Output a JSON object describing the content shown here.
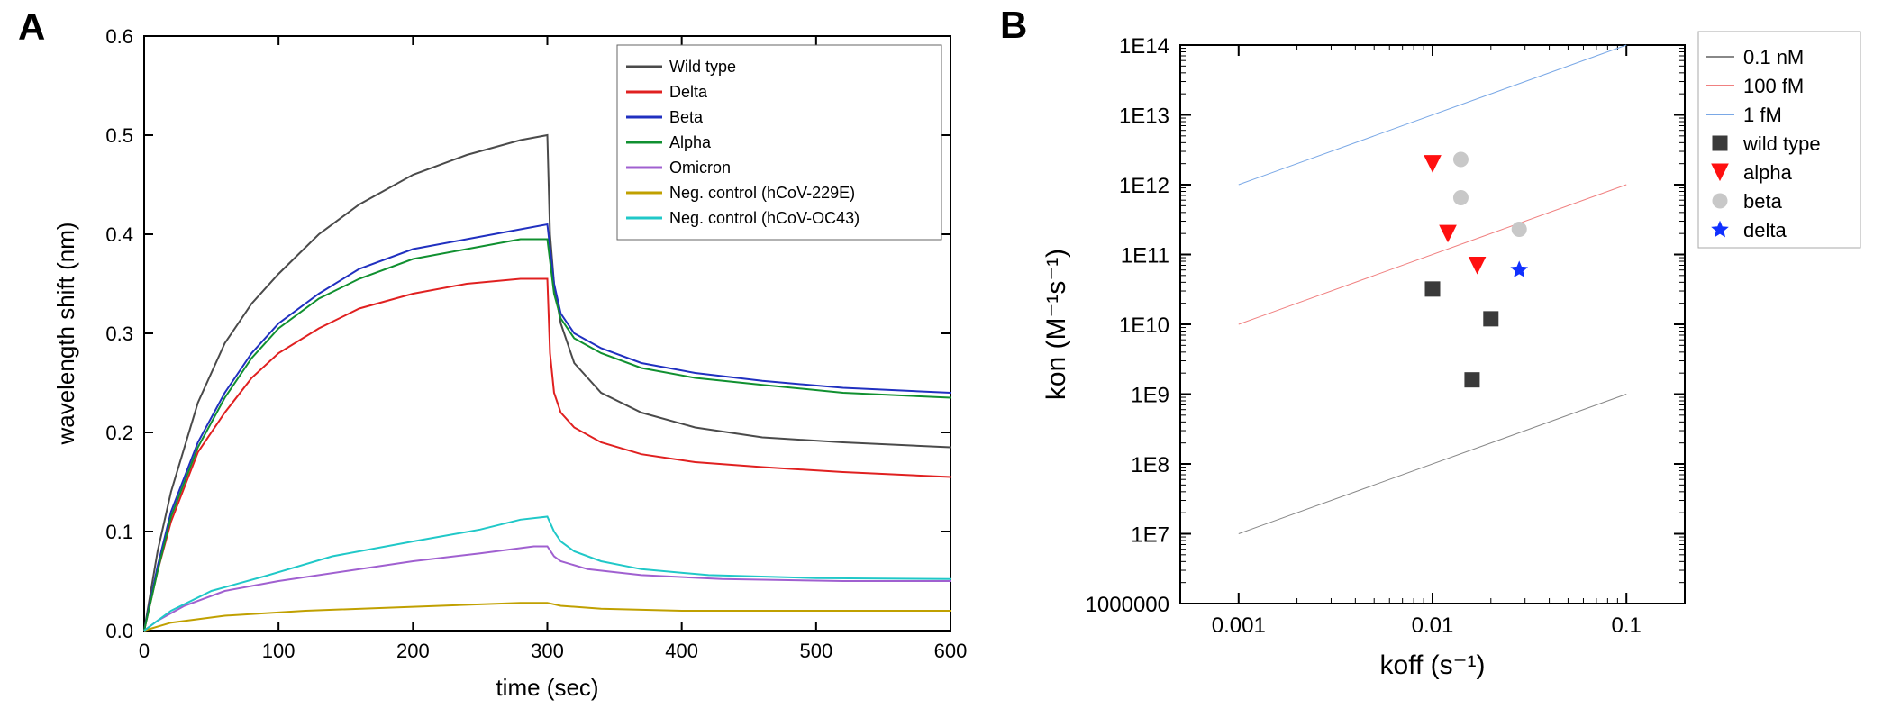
{
  "panelA": {
    "type": "line",
    "label": "A",
    "xlabel": "time (sec)",
    "ylabel": "wavelength shift (nm)",
    "label_fontsize": 26,
    "tick_fontsize": 22,
    "xlim": [
      0,
      600
    ],
    "ylim": [
      0.0,
      0.6
    ],
    "xtick_step": 100,
    "ytick_step": 0.1,
    "background_color": "#ffffff",
    "axis_color": "#000000",
    "line_width": 2,
    "legend": {
      "border_color": "#666666",
      "bg_color": "#ffffff",
      "fontsize": 18
    },
    "series": [
      {
        "name": "Wild type",
        "color": "#4a4a4a",
        "points": [
          [
            0,
            0
          ],
          [
            10,
            0.08
          ],
          [
            20,
            0.14
          ],
          [
            40,
            0.23
          ],
          [
            60,
            0.29
          ],
          [
            80,
            0.33
          ],
          [
            100,
            0.36
          ],
          [
            130,
            0.4
          ],
          [
            160,
            0.43
          ],
          [
            200,
            0.46
          ],
          [
            240,
            0.48
          ],
          [
            280,
            0.495
          ],
          [
            300,
            0.5
          ],
          [
            302,
            0.4
          ],
          [
            305,
            0.35
          ],
          [
            310,
            0.31
          ],
          [
            320,
            0.27
          ],
          [
            340,
            0.24
          ],
          [
            370,
            0.22
          ],
          [
            410,
            0.205
          ],
          [
            460,
            0.195
          ],
          [
            520,
            0.19
          ],
          [
            600,
            0.185
          ]
        ]
      },
      {
        "name": "Delta",
        "color": "#e02020",
        "points": [
          [
            0,
            0
          ],
          [
            10,
            0.06
          ],
          [
            20,
            0.11
          ],
          [
            40,
            0.18
          ],
          [
            60,
            0.22
          ],
          [
            80,
            0.255
          ],
          [
            100,
            0.28
          ],
          [
            130,
            0.305
          ],
          [
            160,
            0.325
          ],
          [
            200,
            0.34
          ],
          [
            240,
            0.35
          ],
          [
            280,
            0.355
          ],
          [
            300,
            0.355
          ],
          [
            302,
            0.28
          ],
          [
            305,
            0.24
          ],
          [
            310,
            0.22
          ],
          [
            320,
            0.205
          ],
          [
            340,
            0.19
          ],
          [
            370,
            0.178
          ],
          [
            410,
            0.17
          ],
          [
            460,
            0.165
          ],
          [
            520,
            0.16
          ],
          [
            600,
            0.155
          ]
        ]
      },
      {
        "name": "Beta",
        "color": "#2030c0",
        "points": [
          [
            0,
            0
          ],
          [
            10,
            0.065
          ],
          [
            20,
            0.12
          ],
          [
            40,
            0.19
          ],
          [
            60,
            0.24
          ],
          [
            80,
            0.28
          ],
          [
            100,
            0.31
          ],
          [
            130,
            0.34
          ],
          [
            160,
            0.365
          ],
          [
            200,
            0.385
          ],
          [
            240,
            0.395
          ],
          [
            280,
            0.405
          ],
          [
            300,
            0.41
          ],
          [
            305,
            0.35
          ],
          [
            310,
            0.32
          ],
          [
            320,
            0.3
          ],
          [
            340,
            0.285
          ],
          [
            370,
            0.27
          ],
          [
            410,
            0.26
          ],
          [
            460,
            0.252
          ],
          [
            520,
            0.245
          ],
          [
            600,
            0.24
          ]
        ]
      },
      {
        "name": "Alpha",
        "color": "#109030",
        "points": [
          [
            0,
            0
          ],
          [
            10,
            0.06
          ],
          [
            20,
            0.115
          ],
          [
            40,
            0.185
          ],
          [
            60,
            0.235
          ],
          [
            80,
            0.275
          ],
          [
            100,
            0.305
          ],
          [
            130,
            0.335
          ],
          [
            160,
            0.355
          ],
          [
            200,
            0.375
          ],
          [
            240,
            0.385
          ],
          [
            280,
            0.395
          ],
          [
            300,
            0.395
          ],
          [
            305,
            0.34
          ],
          [
            310,
            0.315
          ],
          [
            320,
            0.295
          ],
          [
            340,
            0.28
          ],
          [
            370,
            0.265
          ],
          [
            410,
            0.255
          ],
          [
            460,
            0.248
          ],
          [
            520,
            0.24
          ],
          [
            600,
            0.235
          ]
        ]
      },
      {
        "name": "Omicron",
        "color": "#a060d0",
        "points": [
          [
            0,
            0
          ],
          [
            10,
            0.01
          ],
          [
            30,
            0.025
          ],
          [
            60,
            0.04
          ],
          [
            100,
            0.05
          ],
          [
            150,
            0.06
          ],
          [
            200,
            0.07
          ],
          [
            250,
            0.078
          ],
          [
            290,
            0.085
          ],
          [
            300,
            0.085
          ],
          [
            305,
            0.075
          ],
          [
            310,
            0.07
          ],
          [
            330,
            0.062
          ],
          [
            370,
            0.056
          ],
          [
            430,
            0.052
          ],
          [
            520,
            0.05
          ],
          [
            600,
            0.05
          ]
        ]
      },
      {
        "name": "Neg. control (hCoV-229E)",
        "color": "#c0a000",
        "points": [
          [
            0,
            0
          ],
          [
            20,
            0.008
          ],
          [
            60,
            0.015
          ],
          [
            120,
            0.02
          ],
          [
            200,
            0.024
          ],
          [
            280,
            0.028
          ],
          [
            300,
            0.028
          ],
          [
            310,
            0.025
          ],
          [
            340,
            0.022
          ],
          [
            400,
            0.02
          ],
          [
            520,
            0.02
          ],
          [
            600,
            0.02
          ]
        ]
      },
      {
        "name": "Neg. control (hCoV-OC43)",
        "color": "#20c8c8",
        "points": [
          [
            0,
            0
          ],
          [
            20,
            0.02
          ],
          [
            50,
            0.04
          ],
          [
            90,
            0.055
          ],
          [
            140,
            0.075
          ],
          [
            200,
            0.09
          ],
          [
            250,
            0.102
          ],
          [
            280,
            0.112
          ],
          [
            300,
            0.115
          ],
          [
            305,
            0.1
          ],
          [
            310,
            0.09
          ],
          [
            320,
            0.08
          ],
          [
            340,
            0.07
          ],
          [
            370,
            0.062
          ],
          [
            420,
            0.056
          ],
          [
            500,
            0.053
          ],
          [
            600,
            0.052
          ]
        ]
      }
    ]
  },
  "panelB": {
    "type": "scatter",
    "label": "B",
    "xlabel": "koff (s⁻¹)",
    "ylabel": "kon (M⁻¹s⁻¹)",
    "label_fontsize": 30,
    "tick_fontsize": 24,
    "xscale": "log",
    "yscale": "log",
    "xlim": [
      0.0005,
      0.2
    ],
    "ylim": [
      1000000.0,
      100000000000000.0
    ],
    "xticks": [
      0.001,
      0.01,
      0.1
    ],
    "xtick_labels": [
      "0.001",
      "0.01",
      "0.1"
    ],
    "yticks": [
      1000000.0,
      10000000.0,
      100000000.0,
      1000000000.0,
      10000000000.0,
      100000000000.0,
      1000000000000.0,
      10000000000000.0,
      100000000000000.0
    ],
    "ytick_labels": [
      "1000000",
      "1E7",
      "1E8",
      "1E9",
      "1E10",
      "1E11",
      "1E12",
      "1E13",
      "1E14"
    ],
    "background_color": "#ffffff",
    "axis_color": "#000000",
    "legend": {
      "border_color": "#aaaaaa",
      "bg_color": "#ffffff",
      "fontsize": 22
    },
    "ref_lines": [
      {
        "name": "0.1 nM",
        "color": "#888888",
        "width": 1,
        "p1": [
          0.001,
          10000000.0
        ],
        "p2": [
          0.1,
          1000000000.0
        ]
      },
      {
        "name": "100 fM",
        "color": "#f08080",
        "width": 1,
        "p1": [
          0.001,
          10000000000.0
        ],
        "p2": [
          0.1,
          1000000000000.0
        ]
      },
      {
        "name": "1 fM",
        "color": "#7aa8e6",
        "width": 1,
        "p1": [
          0.001,
          1000000000000.0
        ],
        "p2": [
          0.1,
          100000000000000.0
        ]
      }
    ],
    "groups": [
      {
        "name": "wild type",
        "marker": "square",
        "fill": "#3a3a3a",
        "stroke": "#3a3a3a",
        "size": 16,
        "points": [
          [
            0.01,
            32000000000.0
          ],
          [
            0.02,
            12000000000.0
          ],
          [
            0.016,
            1600000000.0
          ]
        ]
      },
      {
        "name": "alpha",
        "marker": "tri-down",
        "fill": "#ff1010",
        "stroke": "#ff1010",
        "size": 18,
        "points": [
          [
            0.01,
            2000000000000.0
          ],
          [
            0.012,
            200000000000.0
          ],
          [
            0.017,
            70000000000.0
          ]
        ]
      },
      {
        "name": "beta",
        "marker": "circle",
        "fill": "#c8c8c8",
        "stroke": "#c8c8c8",
        "size": 16,
        "points": [
          [
            0.014,
            2300000000000.0
          ],
          [
            0.014,
            650000000000.0
          ],
          [
            0.028,
            230000000000.0
          ]
        ]
      },
      {
        "name": "delta",
        "marker": "star",
        "fill": "#1030ff",
        "stroke": "#1030ff",
        "size": 18,
        "points": [
          [
            0.028,
            60000000000.0
          ]
        ]
      }
    ]
  }
}
